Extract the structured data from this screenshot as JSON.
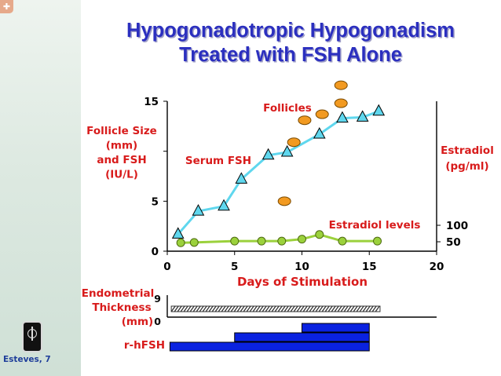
{
  "title_line1": "Hypogonadotropic Hypogonadism",
  "title_line2": "Treated with FSH Alone",
  "credit": "Esteves, 7",
  "colors": {
    "title": "#2b2fbf",
    "axis_label": "#d81b1b",
    "fsh": "#5fd7ee",
    "estradiol": "#9bd13c",
    "follicle": "#f29a21",
    "bar": "#0a22e0"
  },
  "chart_data": {
    "type": "line",
    "xlabel": "Days of Stimulation",
    "xlim": [
      0,
      20
    ],
    "x_ticks": [
      0,
      5,
      10,
      15,
      20
    ],
    "y_left_label": [
      "Follicle Size",
      "(mm)",
      "and FSH",
      "(IU/L)"
    ],
    "y_left_ticks": [
      0,
      5,
      15
    ],
    "ylim_left": [
      0,
      15
    ],
    "y_right_label": [
      "Estradiol",
      "(pg/ml)"
    ],
    "y_right_ticks": [
      50,
      100
    ],
    "series": [
      {
        "name": "Serum FSH",
        "marker": "triangle",
        "x": [
          0.8,
          2.3,
          4.2,
          5.5,
          7.5,
          8.9,
          11.3,
          13.0,
          14.5,
          15.7
        ],
        "y": [
          1.7,
          4.0,
          4.5,
          7.2,
          9.6,
          9.9,
          11.7,
          13.3,
          13.4,
          14.0
        ]
      },
      {
        "name": "Estradiol levels",
        "marker": "circle",
        "axis": "right",
        "x": [
          1.0,
          2.0,
          5.0,
          7.0,
          8.5,
          10.0,
          11.3,
          13.0,
          15.6
        ],
        "y": [
          47,
          48,
          52,
          52,
          52,
          58,
          72,
          52,
          52
        ]
      },
      {
        "name": "Follicles",
        "marker": "oval",
        "x": [
          8.7,
          9.4,
          10.2,
          11.5,
          12.9,
          12.9
        ],
        "y": [
          5.0,
          10.9,
          13.1,
          13.7,
          14.8,
          16.6
        ]
      }
    ],
    "endometrium": {
      "label": [
        "Endometrial",
        "Thickness",
        "(mm)"
      ],
      "ticks": [
        0,
        9
      ],
      "x_start": 0.3,
      "x_end": 15.8
    },
    "rhfsh": {
      "label": "r-hFSH",
      "steps": [
        {
          "x_start": 0.2,
          "x_end": 15.0
        },
        {
          "x_start": 5.0,
          "x_end": 15.0
        },
        {
          "x_start": 10.0,
          "x_end": 15.0
        }
      ]
    }
  }
}
